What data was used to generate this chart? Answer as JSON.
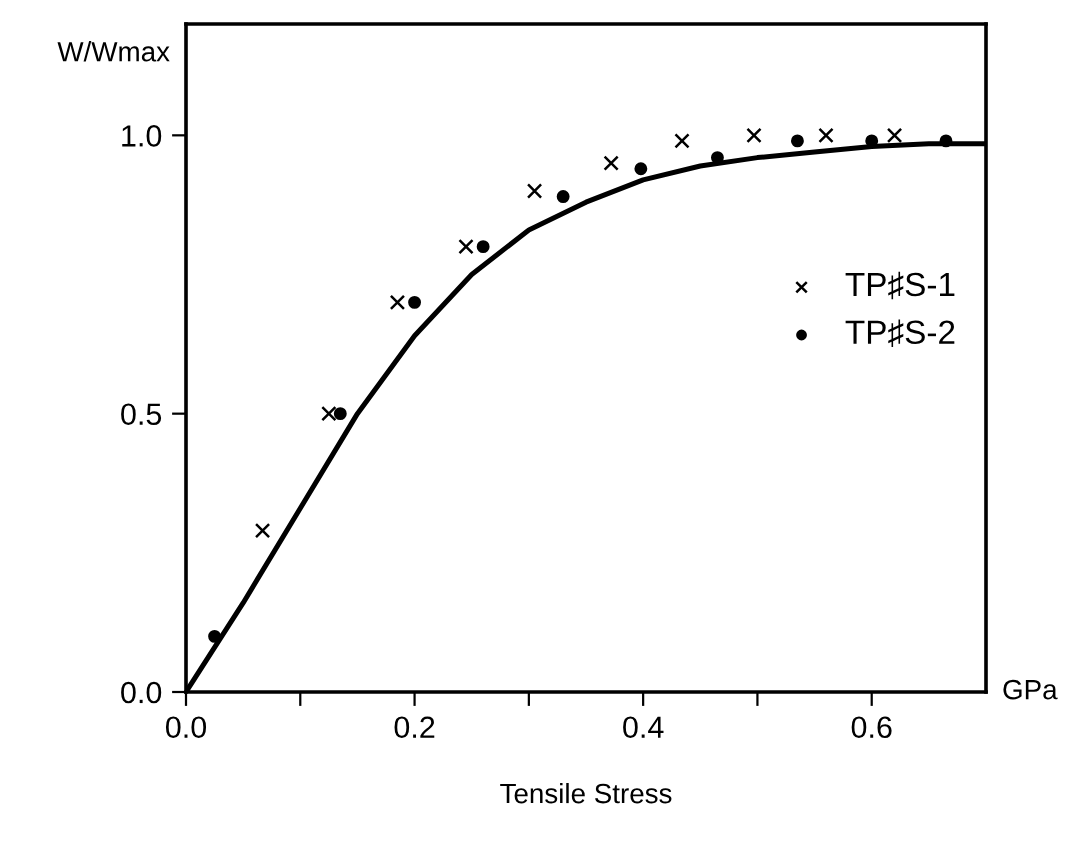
{
  "chart_data": {
    "type": "scatter",
    "xlabel": "Tensile Stress",
    "ylabel": "W/Wmax",
    "annotations": [
      "GPa"
    ],
    "xlim": [
      0,
      0.7
    ],
    "ylim": [
      0,
      1.2
    ],
    "xticks": [
      {
        "value": 0.0,
        "label": "0.0"
      },
      {
        "value": 0.1,
        "label": null
      },
      {
        "value": 0.2,
        "label": "0.2"
      },
      {
        "value": 0.3,
        "label": null
      },
      {
        "value": 0.4,
        "label": "0.4"
      },
      {
        "value": 0.5,
        "label": null
      },
      {
        "value": 0.6,
        "label": "0.6"
      }
    ],
    "yticks": [
      {
        "value": 0.0,
        "label": "0.0"
      },
      {
        "value": 0.5,
        "label": "0.5"
      },
      {
        "value": 1.0,
        "label": "1.0"
      }
    ],
    "grid": false,
    "legend": "right",
    "series": [
      {
        "name": "TP♯S-1",
        "color": "#000000",
        "marker": "cross",
        "x": [
          0.067,
          0.125,
          0.185,
          0.245,
          0.305,
          0.372,
          0.434,
          0.497,
          0.56,
          0.62
        ],
        "values": [
          0.29,
          0.5,
          0.7,
          0.8,
          0.9,
          0.95,
          0.99,
          1.0,
          1.0,
          1.0
        ]
      },
      {
        "name": "TP♯S-2",
        "color": "#000000",
        "marker": "circle",
        "x": [
          0.025,
          0.135,
          0.2,
          0.26,
          0.33,
          0.398,
          0.465,
          0.535,
          0.6,
          0.665
        ],
        "values": [
          0.1,
          0.5,
          0.7,
          0.8,
          0.89,
          0.94,
          0.96,
          0.99,
          0.99,
          0.99
        ]
      },
      {
        "type": "line",
        "color": "#000000",
        "marker": "none",
        "line_style": "solid",
        "x": [
          0,
          0.05,
          0.1,
          0.15,
          0.2,
          0.25,
          0.3,
          0.35,
          0.4,
          0.45,
          0.5,
          0.55,
          0.6,
          0.65,
          0.7
        ],
        "values": [
          0,
          0.16,
          0.33,
          0.5,
          0.64,
          0.75,
          0.83,
          0.88,
          0.92,
          0.945,
          0.96,
          0.97,
          0.98,
          0.985,
          0.985
        ]
      }
    ]
  }
}
